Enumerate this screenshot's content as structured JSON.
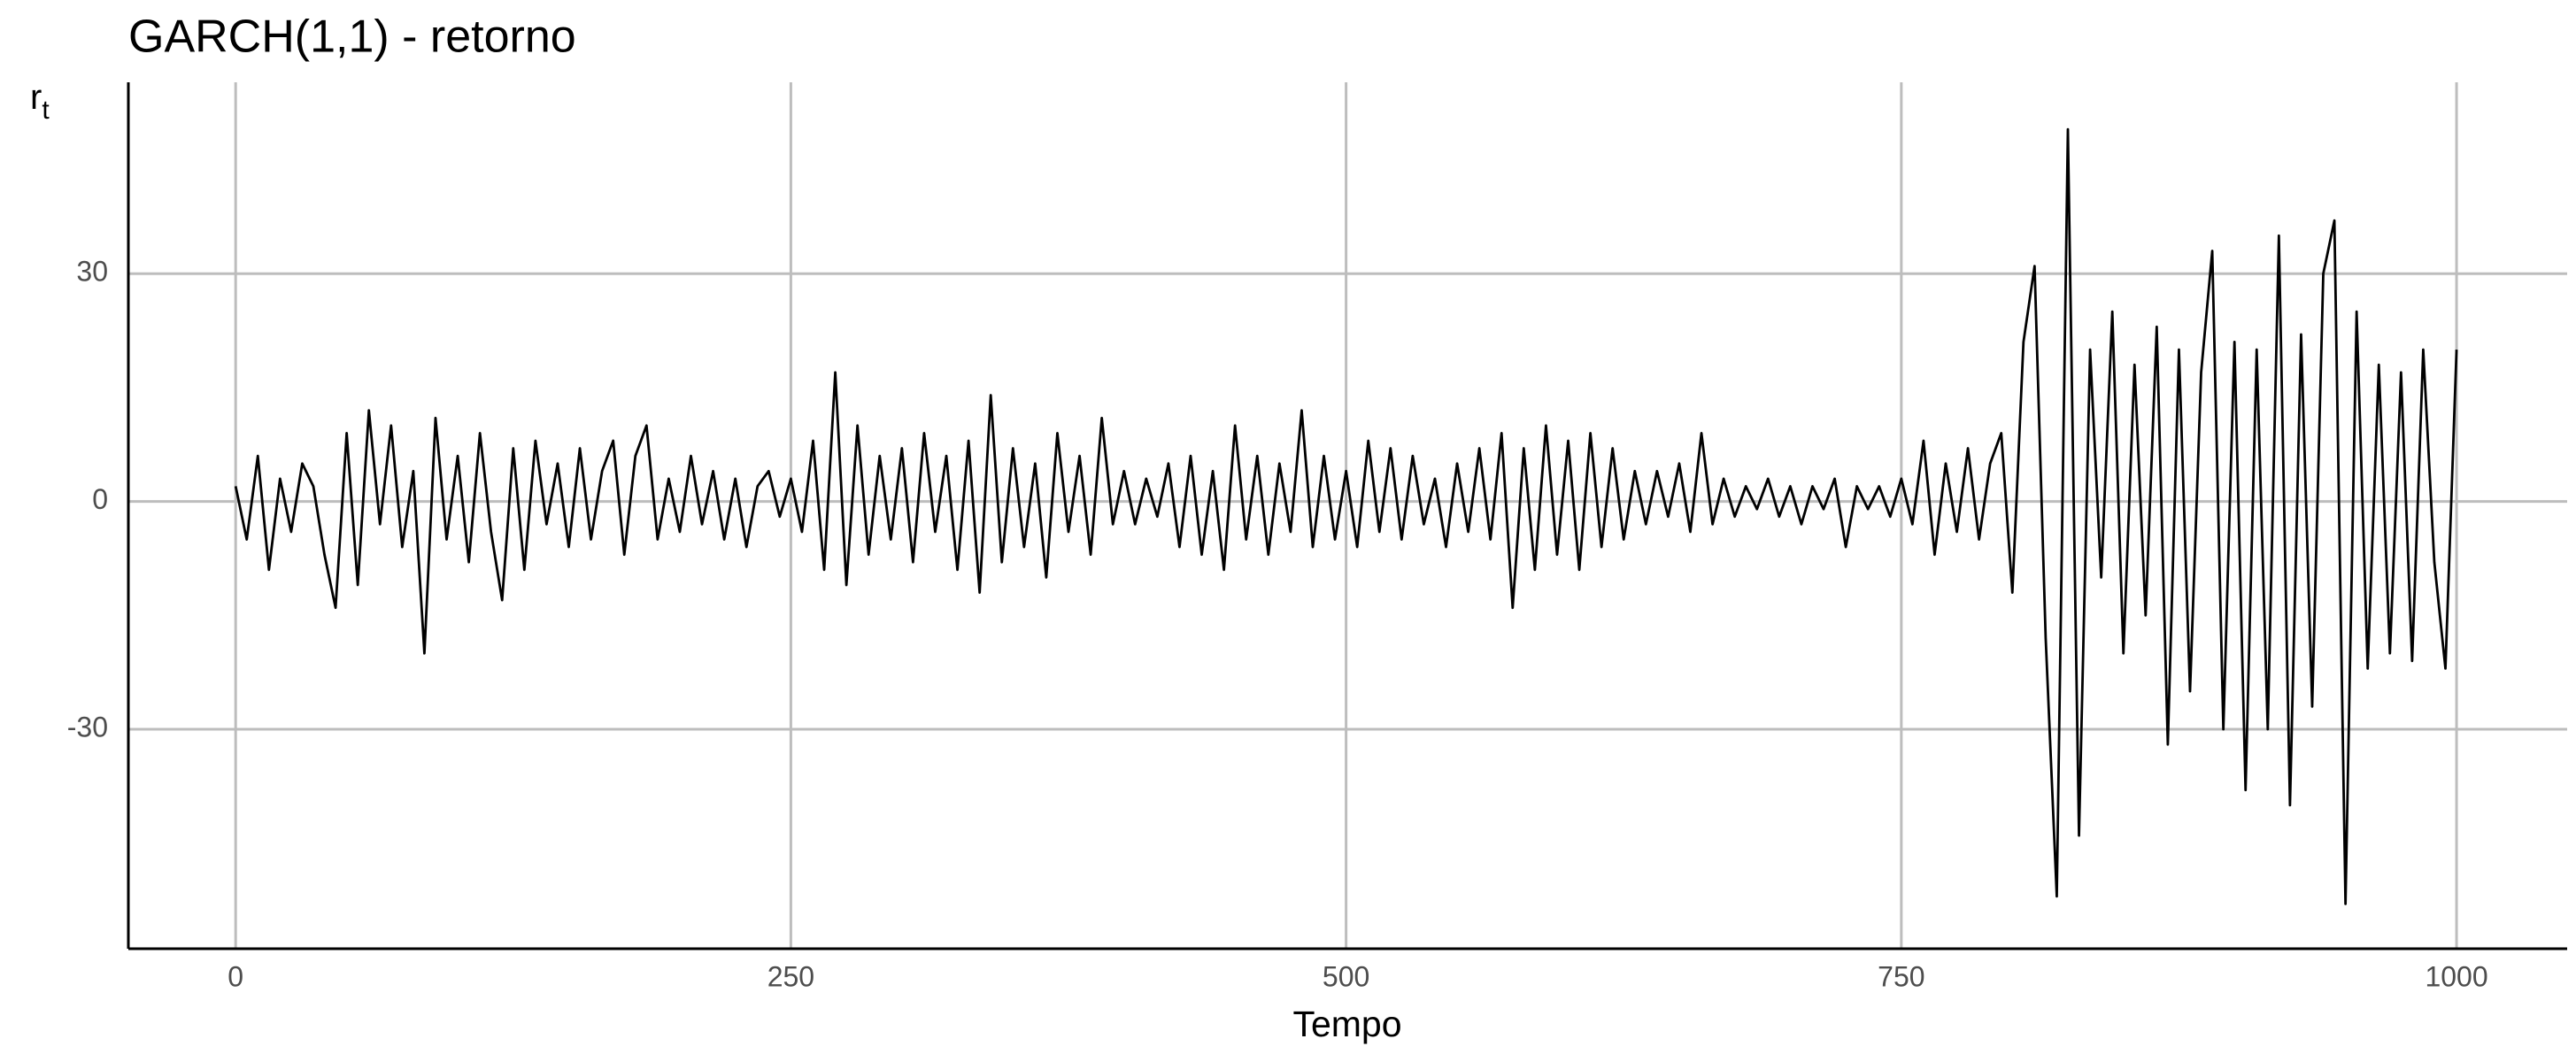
{
  "chart_data": {
    "type": "line",
    "title": "GARCH(1,1) - retorno",
    "x_label": "Tempo",
    "y_label": "r",
    "y_label_subscript": "t",
    "x": [
      0,
      5,
      10,
      15,
      20,
      25,
      30,
      35,
      40,
      45,
      50,
      55,
      60,
      65,
      70,
      75,
      80,
      85,
      90,
      95,
      100,
      105,
      110,
      115,
      120,
      125,
      130,
      135,
      140,
      145,
      150,
      155,
      160,
      165,
      170,
      175,
      180,
      185,
      190,
      195,
      200,
      205,
      210,
      215,
      220,
      225,
      230,
      235,
      240,
      245,
      250,
      255,
      260,
      265,
      270,
      275,
      280,
      285,
      290,
      295,
      300,
      305,
      310,
      315,
      320,
      325,
      330,
      335,
      340,
      345,
      350,
      355,
      360,
      365,
      370,
      375,
      380,
      385,
      390,
      395,
      400,
      405,
      410,
      415,
      420,
      425,
      430,
      435,
      440,
      445,
      450,
      455,
      460,
      465,
      470,
      475,
      480,
      485,
      490,
      495,
      500,
      505,
      510,
      515,
      520,
      525,
      530,
      535,
      540,
      545,
      550,
      555,
      560,
      565,
      570,
      575,
      580,
      585,
      590,
      595,
      600,
      605,
      610,
      615,
      620,
      625,
      630,
      635,
      640,
      645,
      650,
      655,
      660,
      665,
      670,
      675,
      680,
      685,
      690,
      695,
      700,
      705,
      710,
      715,
      720,
      725,
      730,
      735,
      740,
      745,
      750,
      755,
      760,
      765,
      770,
      775,
      780,
      785,
      790,
      795,
      800,
      805,
      810,
      815,
      820,
      825,
      830,
      835,
      840,
      845,
      850,
      855,
      860,
      865,
      870,
      875,
      880,
      885,
      890,
      895,
      900,
      905,
      910,
      915,
      920,
      925,
      930,
      935,
      940,
      945,
      950,
      955,
      960,
      965,
      970,
      975,
      980,
      985,
      990,
      995,
      1000
    ],
    "series": [
      {
        "color": "#000000",
        "values": [
          2,
          -5,
          6,
          -9,
          3,
          -4,
          5,
          2,
          -7,
          -14,
          9,
          -11,
          12,
          -3,
          10,
          -6,
          4,
          -20,
          11,
          -5,
          6,
          -8,
          9,
          -4,
          -13,
          7,
          -9,
          8,
          -3,
          5,
          -6,
          7,
          -5,
          4,
          8,
          -7,
          6,
          10,
          -5,
          3,
          -4,
          6,
          -3,
          4,
          -5,
          3,
          -6,
          2,
          4,
          -2,
          3,
          -4,
          8,
          -9,
          17,
          -11,
          10,
          -7,
          6,
          -5,
          7,
          -8,
          9,
          -4,
          6,
          -9,
          8,
          -12,
          14,
          -8,
          7,
          -6,
          5,
          -10,
          9,
          -4,
          6,
          -7,
          11,
          -3,
          4,
          -3,
          3,
          -2,
          5,
          -6,
          6,
          -7,
          4,
          -9,
          10,
          -5,
          6,
          -7,
          5,
          -4,
          12,
          -6,
          6,
          -5,
          4,
          -6,
          8,
          -4,
          7,
          -5,
          6,
          -3,
          3,
          -6,
          5,
          -4,
          7,
          -5,
          9,
          -14,
          7,
          -9,
          10,
          -7,
          8,
          -9,
          9,
          -6,
          7,
          -5,
          4,
          -3,
          4,
          -2,
          5,
          -4,
          9,
          -3,
          3,
          -2,
          2,
          -1,
          3,
          -2,
          2,
          -3,
          2,
          -1,
          3,
          -6,
          2,
          -1,
          2,
          -2,
          3,
          -3,
          8,
          -7,
          5,
          -4,
          7,
          -5,
          5,
          9,
          -12,
          21,
          31,
          -18,
          -52,
          49,
          -44,
          20,
          -10,
          25,
          -20,
          18,
          -15,
          23,
          -32,
          20,
          -25,
          17,
          33,
          -30,
          21,
          -38,
          20,
          -30,
          35,
          -40,
          22,
          -27,
          30,
          37,
          -53,
          25,
          -22,
          18,
          -20,
          17,
          -21,
          20,
          -8,
          -22,
          20
        ]
      }
    ],
    "xlim": [
      -48.3,
      1049.8
    ],
    "ylim": [
      -58.9,
      55.2
    ],
    "xticks": [
      0,
      250,
      500,
      750,
      1000
    ],
    "yticks": [
      -30,
      0,
      30
    ],
    "grid": true
  }
}
